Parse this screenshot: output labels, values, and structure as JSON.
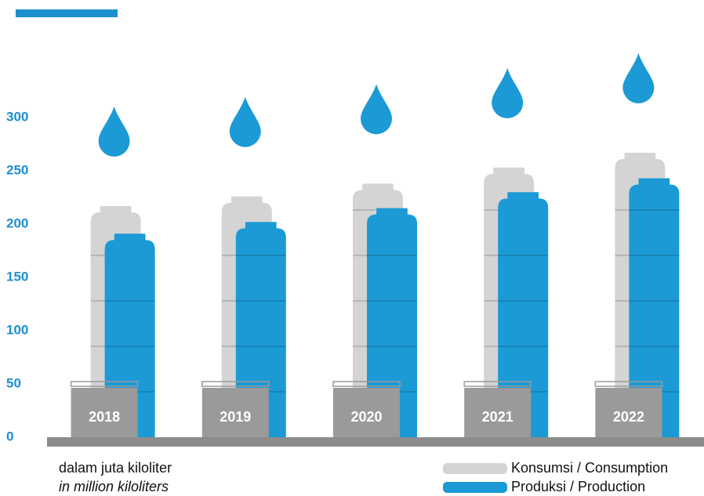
{
  "chart_data": {
    "type": "bar",
    "categories": [
      "2018",
      "2019",
      "2020",
      "2021",
      "2022"
    ],
    "series": [
      {
        "name": "Konsumsi / Consumption",
        "color": "#d4d4d4",
        "values": [
          217,
          226,
          238,
          253,
          267
        ]
      },
      {
        "name": "Produksi / Production",
        "color": "#1b9ad6",
        "values": [
          191,
          202,
          215,
          230,
          243
        ]
      }
    ],
    "ylim": [
      0,
      300
    ],
    "yticks": [
      0,
      50,
      100,
      150,
      200,
      250,
      300
    ],
    "unit_label": "dalam juta kiloliter",
    "unit_label_en": "in million kiloliters"
  }
}
